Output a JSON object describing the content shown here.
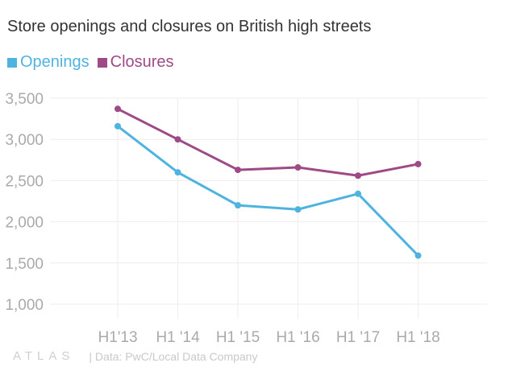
{
  "title": "Store openings and closures on British high streets",
  "footer": {
    "logo": "ATLAS",
    "source": "| Data: PwC/Local Data Company"
  },
  "colors": {
    "openings": "#4fb3e0",
    "closures": "#9e4a86",
    "grid": "#eeeeee",
    "tick": "#aaaaaa"
  },
  "chart_data": {
    "type": "line",
    "title": "Store openings and closures on British high streets",
    "categories": [
      "H1'13",
      "H1 '14",
      "H1 '15",
      "H1 '16",
      "H1 '17",
      "H1 '18"
    ],
    "series": [
      {
        "name": "Openings",
        "values": [
          3160,
          2600,
          2200,
          2150,
          2340,
          1590
        ]
      },
      {
        "name": "Closures",
        "values": [
          3370,
          3000,
          2630,
          2660,
          2560,
          2700
        ]
      }
    ],
    "ylim": [
      1000,
      3500
    ],
    "yticks": [
      1000,
      1500,
      2000,
      2500,
      3000,
      3500
    ],
    "ytick_labels": [
      "1,000",
      "1,500",
      "2,000",
      "2,500",
      "3,000",
      "3,500"
    ],
    "legend": "top-left",
    "grid": true
  }
}
